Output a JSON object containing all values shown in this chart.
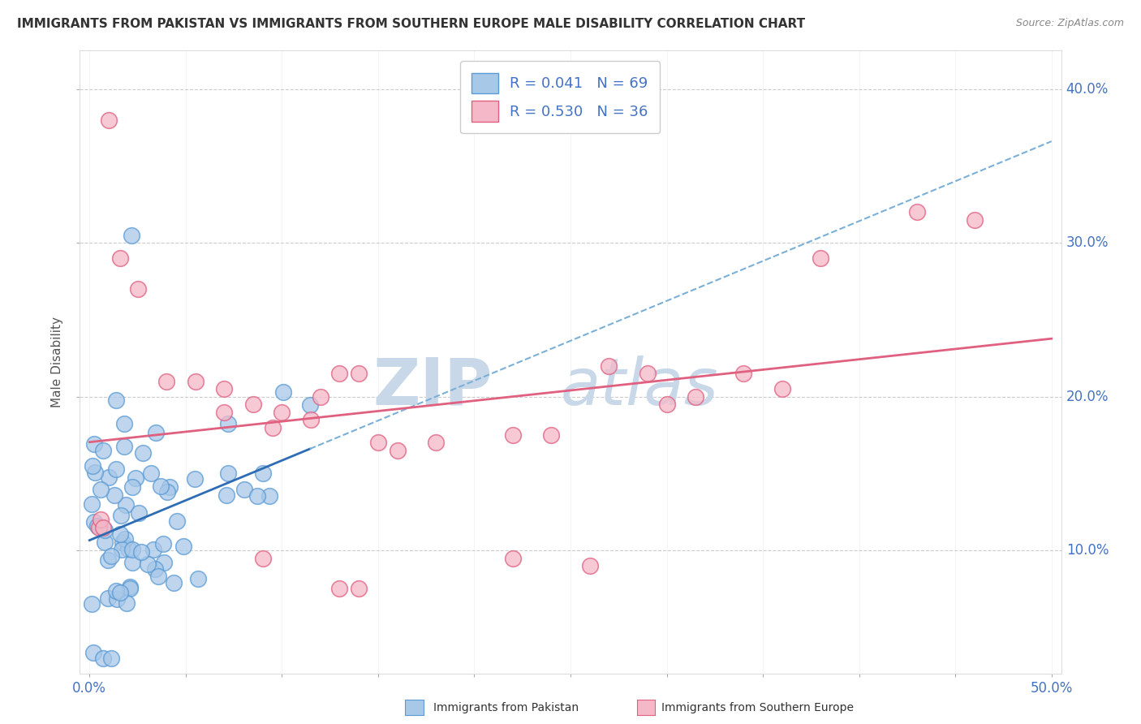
{
  "title": "IMMIGRANTS FROM PAKISTAN VS IMMIGRANTS FROM SOUTHERN EUROPE MALE DISABILITY CORRELATION CHART",
  "source": "Source: ZipAtlas.com",
  "ylabel": "Male Disability",
  "xlim": [
    -0.005,
    0.505
  ],
  "ylim": [
    0.02,
    0.425
  ],
  "x_ticks": [
    0.0,
    0.05,
    0.1,
    0.15,
    0.2,
    0.25,
    0.3,
    0.35,
    0.4,
    0.45,
    0.5
  ],
  "y_ticks": [
    0.1,
    0.2,
    0.3,
    0.4
  ],
  "y_tick_labels": [
    "10.0%",
    "20.0%",
    "30.0%",
    "40.0%"
  ],
  "pakistan_color": "#a8c8e8",
  "pakistan_edge_color": "#5b9bd5",
  "southern_europe_color": "#f4b8c8",
  "southern_europe_edge_color": "#e06080",
  "pakistan_R": 0.041,
  "pakistan_N": 69,
  "southern_europe_R": 0.53,
  "southern_europe_N": 36,
  "regression_pakistan_solid_color": "#2e6db4",
  "regression_pakistan_dashed_color": "#7ab0d8",
  "regression_southern_europe_color": "#e06080",
  "watermark_zip": "ZIP",
  "watermark_atlas": "atlas",
  "watermark_color": "#c8d8e8",
  "background_color": "#ffffff",
  "grid_color": "#cccccc",
  "tick_label_color": "#4472c4",
  "title_color": "#333333",
  "source_color": "#888888"
}
